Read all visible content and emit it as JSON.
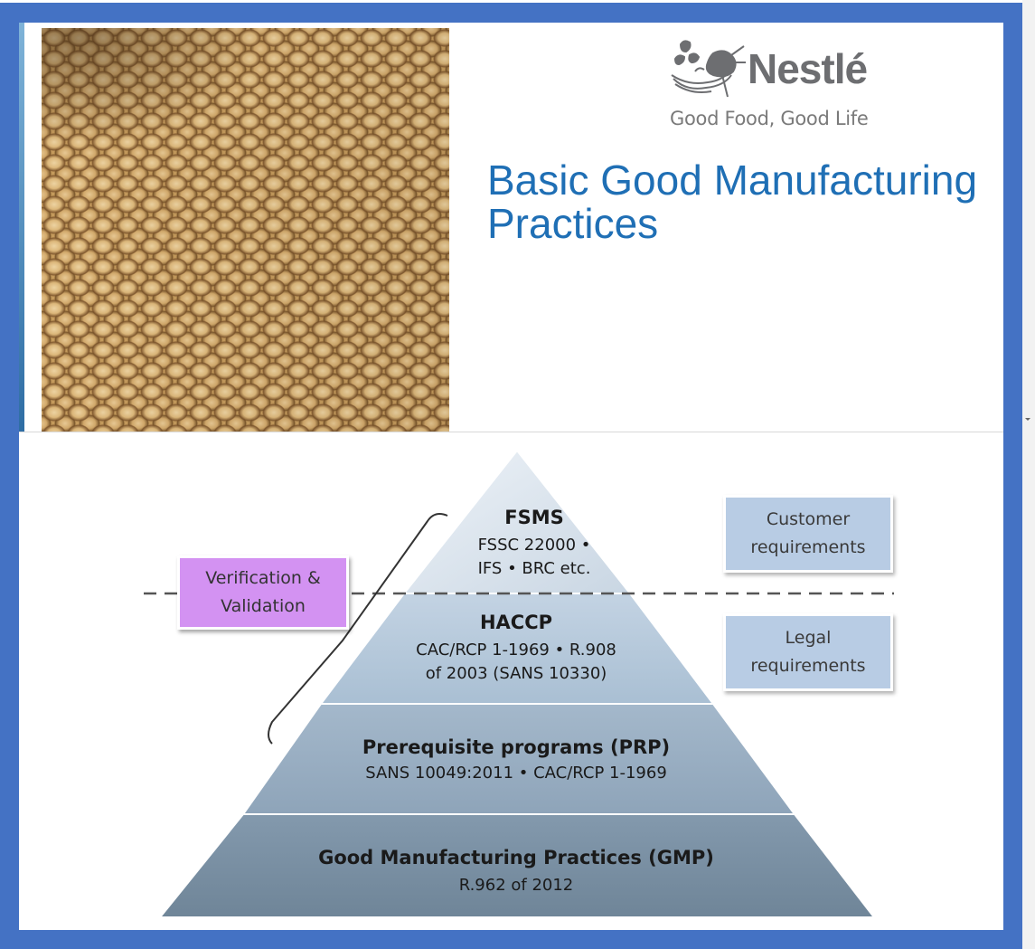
{
  "slide1": {
    "brand": {
      "name": "Nestlé",
      "tagline": "Good Food, Good Life",
      "logo_icon": "bird-nest-logo-icon"
    },
    "title": "Basic Good Manufacturing Practices",
    "photo": "soybeans-photo"
  },
  "slide2": {
    "pyramid": [
      {
        "heading": "FSMS",
        "lines": [
          "FSSC 22000 •",
          "IFS • BRC etc."
        ]
      },
      {
        "heading": "HACCP",
        "lines": [
          "CAC/RCP 1-1969 • R.908",
          "of 2003 (SANS 10330)"
        ]
      },
      {
        "heading": "Prerequisite programs (PRP)",
        "lines": [
          "SANS 10049:2011 • CAC/RCP 1-1969"
        ]
      },
      {
        "heading": "Good Manufacturing Practices (GMP)",
        "lines": [
          "R.962 of 2012"
        ]
      }
    ],
    "verification_label": [
      "Verification &",
      "Validation"
    ],
    "customer_requirements": [
      "Customer",
      "requirements"
    ],
    "legal_requirements": [
      "Legal",
      "requirements"
    ]
  },
  "colors": {
    "background_frame": "#4472c4",
    "title_blue": "#1f6fb5",
    "verification_box": "#d392f2",
    "requirement_box": "#b8cce4"
  }
}
